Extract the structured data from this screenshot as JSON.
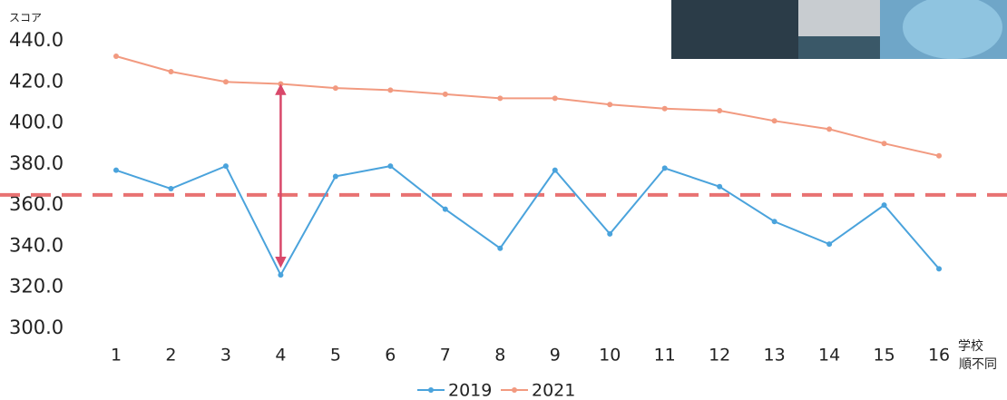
{
  "chart_data": {
    "type": "line",
    "ylabel": "スコア",
    "xlabel": [
      "学校",
      "順不同"
    ],
    "categories": [
      "1",
      "2",
      "3",
      "4",
      "5",
      "6",
      "7",
      "8",
      "9",
      "10",
      "11",
      "12",
      "13",
      "14",
      "15",
      "16"
    ],
    "series": [
      {
        "name": "2019",
        "color": "#4aa3dc",
        "values": [
          377,
          368,
          379,
          326,
          374,
          379,
          358,
          339,
          377,
          346,
          378,
          369,
          352,
          341,
          360,
          329
        ]
      },
      {
        "name": "2021",
        "color": "#f29a80",
        "values": [
          432.5,
          425,
          420,
          419,
          417,
          416,
          414,
          412,
          412,
          409,
          407,
          406,
          401,
          397,
          390,
          384
        ]
      }
    ],
    "reference_line": 365,
    "reference_color": "#e87272",
    "arrow_category_index": 3,
    "arrow_color": "#d9486a",
    "ylim": [
      300,
      440
    ],
    "yticks": [
      {
        "value": 300,
        "label": "300.0"
      },
      {
        "value": 320,
        "label": "320.0"
      },
      {
        "value": 340,
        "label": "340.0"
      },
      {
        "value": 360,
        "label": "360.0"
      },
      {
        "value": 380,
        "label": "380.0"
      },
      {
        "value": 400,
        "label": "400.0"
      },
      {
        "value": 420,
        "label": "420.0"
      },
      {
        "value": 440,
        "label": "440.0"
      }
    ],
    "grid": false,
    "legend": "bottom"
  }
}
